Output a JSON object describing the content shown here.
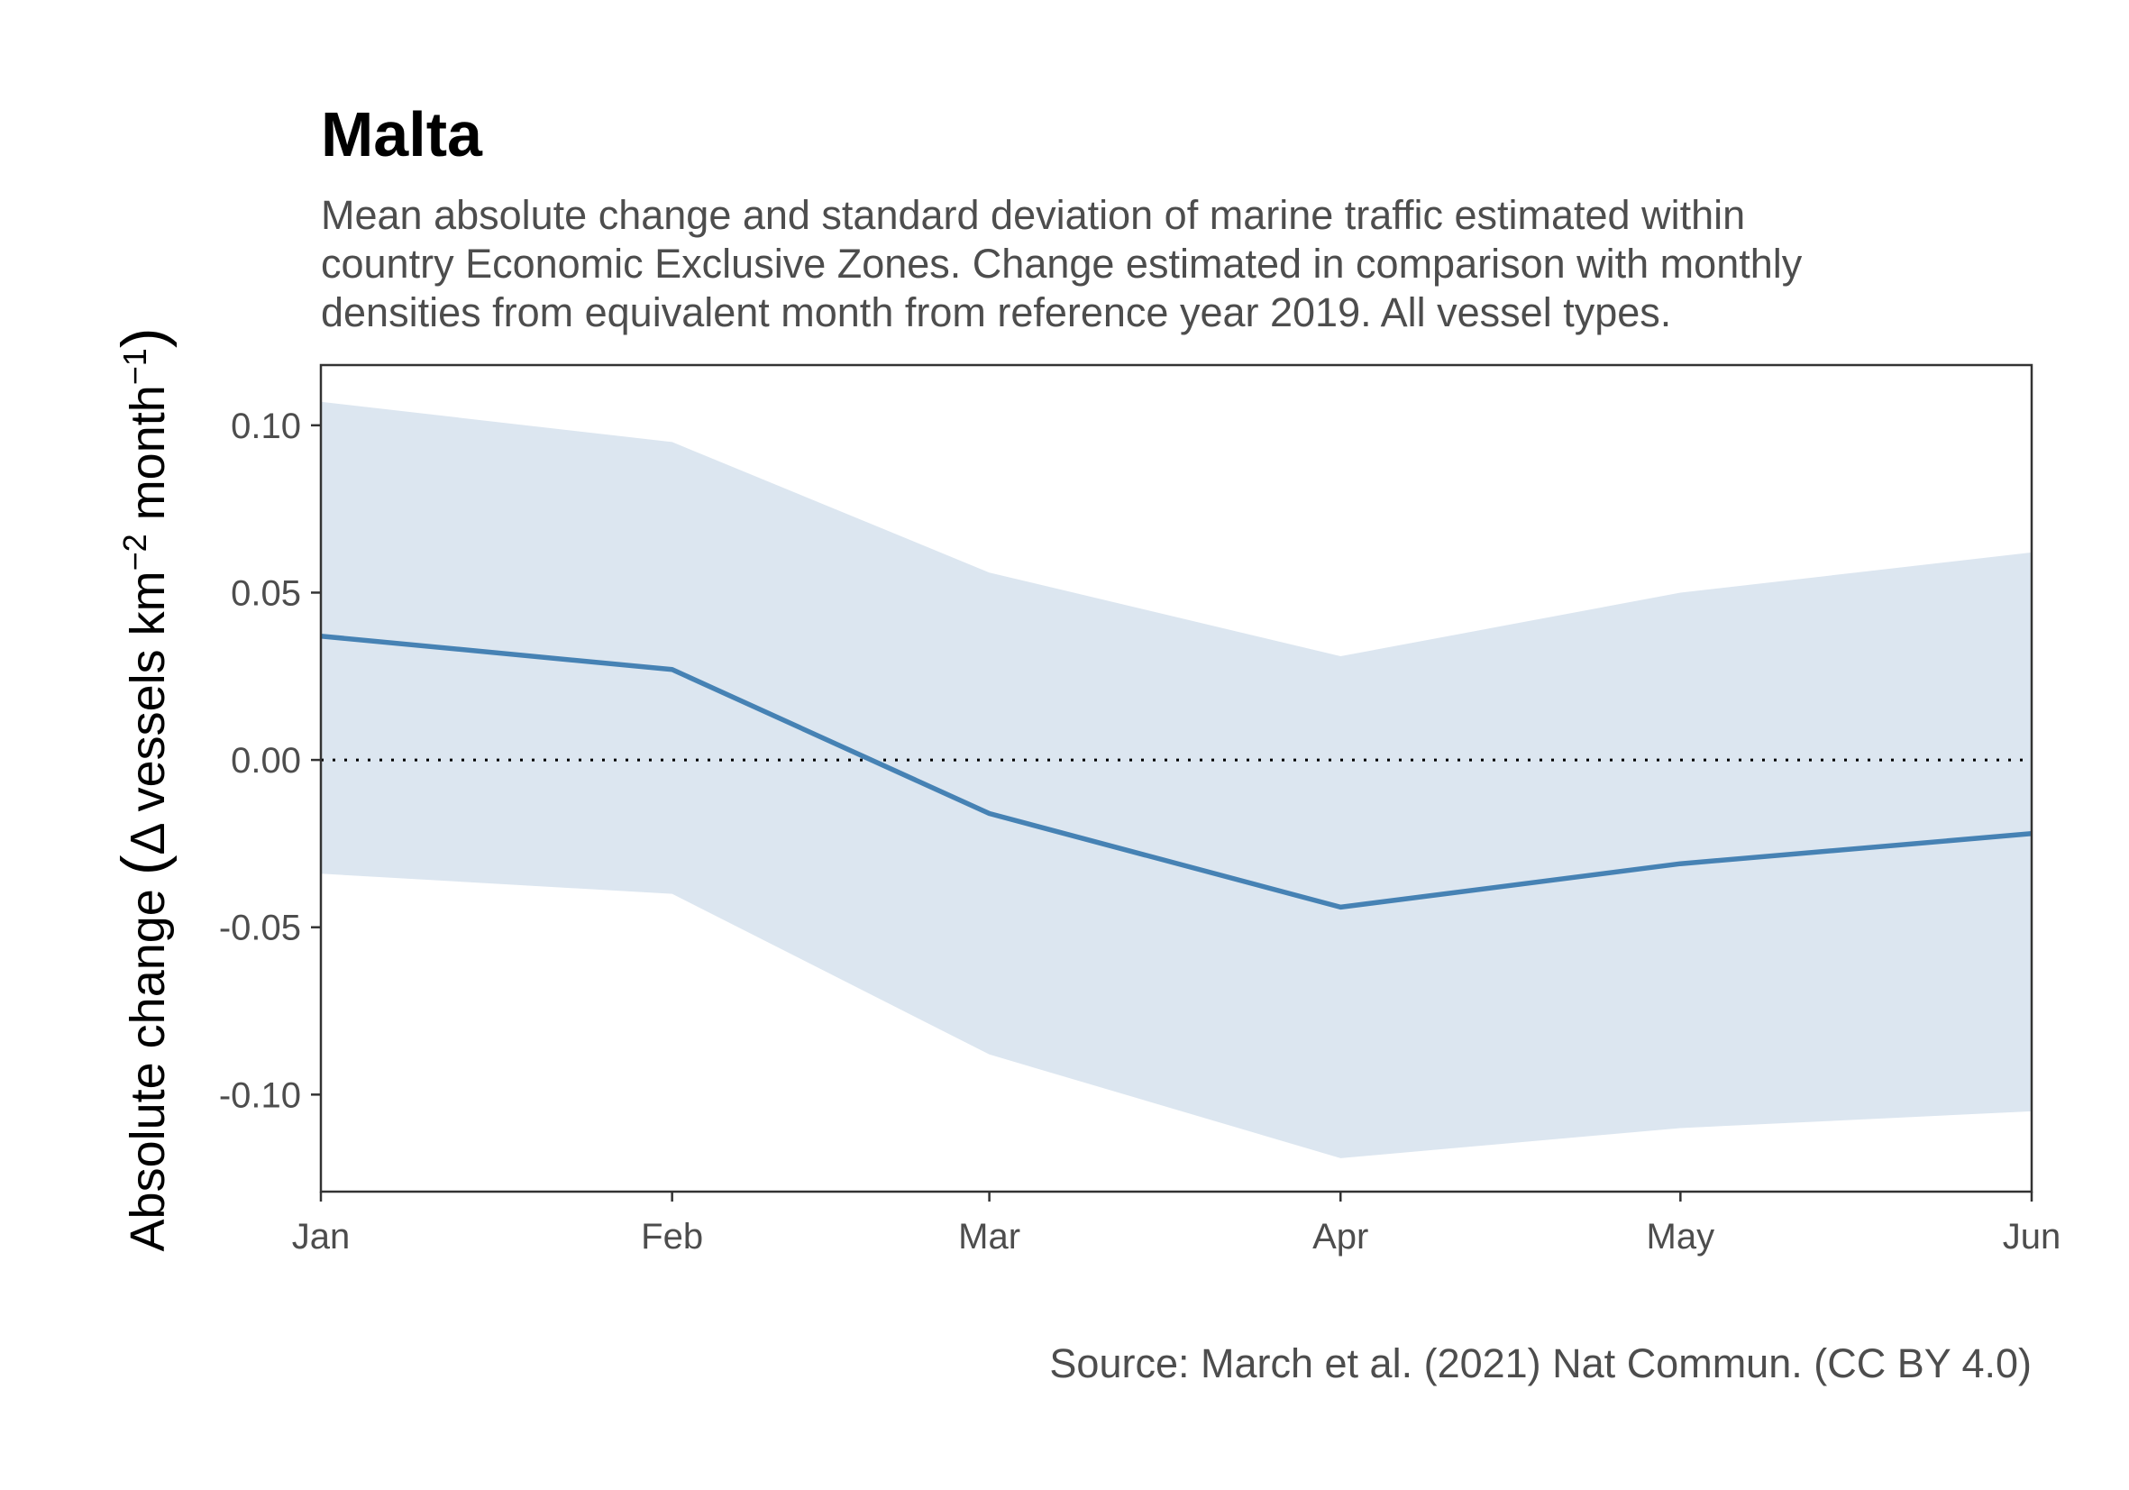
{
  "chart_data": {
    "type": "line",
    "title": "Malta",
    "subtitle": [
      "Mean absolute change and standard deviation of marine traffic estimated within",
      "country Economic Exclusive Zones. Change estimated in comparison with monthly",
      "densities from equivalent month from reference year 2019. All vessel types."
    ],
    "ylabel": "Absolute change (Δ vessels km⁻² month⁻¹)",
    "ylabel_parts": {
      "main": "Absolute change ",
      "open_paren": "(",
      "inner": "Δ vessels km",
      "sup1": "−2",
      "middle": " month",
      "sup2": "−1",
      "close_paren": ")"
    },
    "xlabel": "",
    "caption": "Source: March et al. (2021) Nat Commun. (CC BY 4.0)",
    "categories": [
      "Jan",
      "Feb",
      "Mar",
      "Apr",
      "May",
      "Jun"
    ],
    "x_days": [
      1,
      32,
      60,
      91,
      121,
      152
    ],
    "series": [
      {
        "values": [
          0.037,
          0.027,
          -0.016,
          -0.044,
          -0.031,
          -0.022
        ],
        "color": "#4682b4"
      }
    ],
    "band": {
      "upper": [
        0.107,
        0.095,
        0.056,
        0.031,
        0.05,
        0.062
      ],
      "lower": [
        -0.034,
        -0.04,
        -0.088,
        -0.119,
        -0.11,
        -0.105
      ],
      "color": "#dce6f0"
    },
    "yticks": [
      0.1,
      0.05,
      0.0,
      -0.05,
      -0.1
    ],
    "ytick_labels": [
      "0.10",
      "0.05",
      "0.00",
      "-0.05",
      "-0.10"
    ],
    "ylim": [
      -0.129,
      0.118
    ],
    "reference_line": 0,
    "grid": false,
    "legend": "none"
  }
}
